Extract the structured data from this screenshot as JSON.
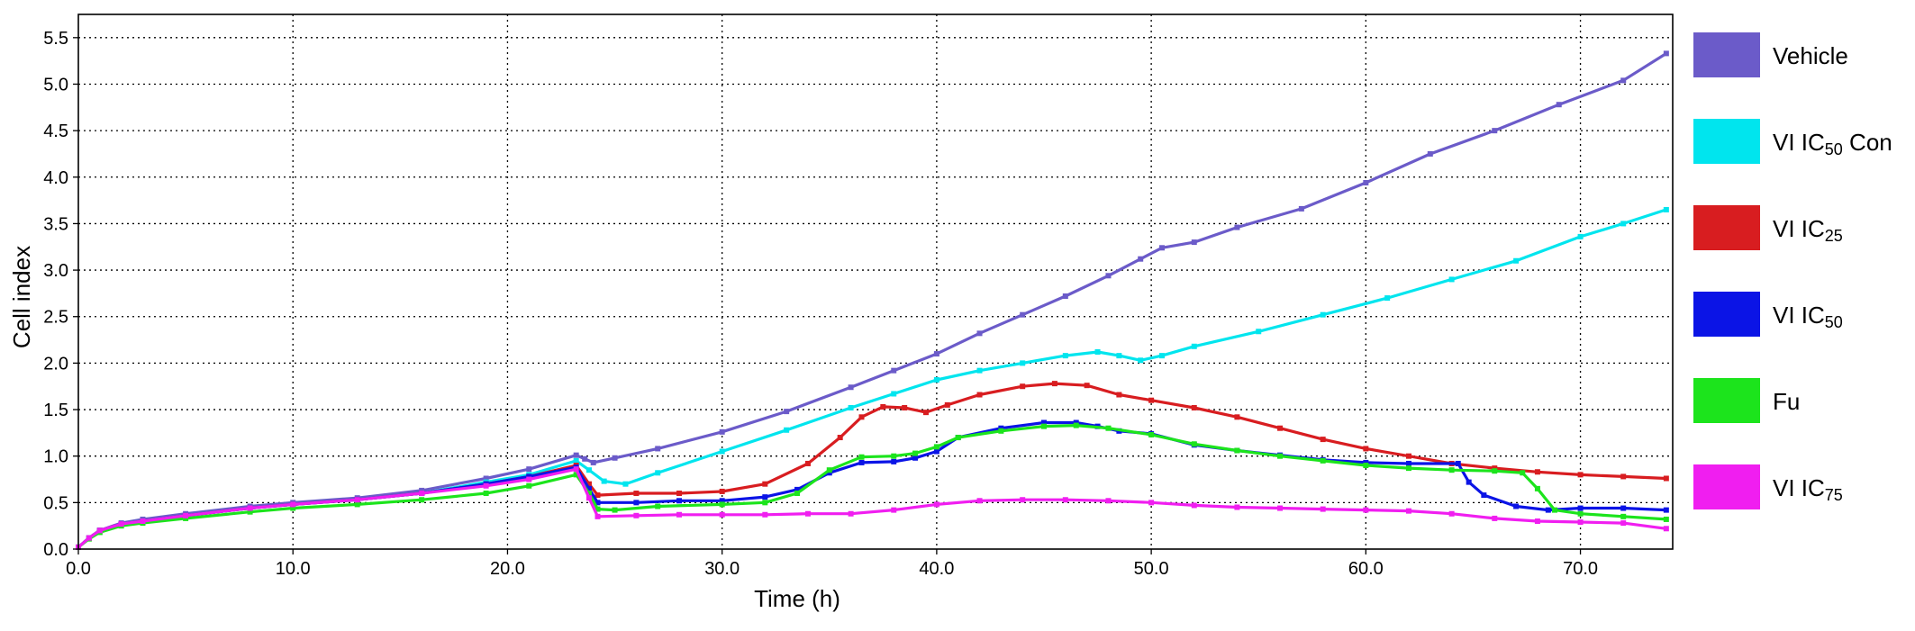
{
  "chart_data": {
    "type": "line",
    "title": "",
    "xlabel": "Time (h)",
    "ylabel": "Cell index",
    "xlim": [
      0,
      74.3
    ],
    "ylim": [
      0,
      5.75
    ],
    "x_ticks": [
      0,
      10,
      20,
      30,
      40,
      50,
      60,
      70
    ],
    "x_tick_labels": [
      "0.0",
      "10.0",
      "20.0",
      "30.0",
      "40.0",
      "50.0",
      "60.0",
      "70.0"
    ],
    "y_ticks": [
      0,
      0.5,
      1,
      1.5,
      2,
      2.5,
      3,
      3.5,
      4,
      4.5,
      5,
      5.5
    ],
    "y_tick_labels": [
      "0.0",
      "0.5",
      "1.0",
      "1.5",
      "2.0",
      "2.5",
      "3.0",
      "3.5",
      "4.0",
      "4.5",
      "5.0",
      "5.5"
    ],
    "grid": true,
    "legend_position": "right",
    "series": [
      {
        "name": "Vehicle",
        "label_parts": [
          {
            "text": "Vehicle",
            "sub": ""
          }
        ],
        "color": "#6b5bc9",
        "points": [
          [
            0,
            0.02
          ],
          [
            0.5,
            0.12
          ],
          [
            1,
            0.2
          ],
          [
            2,
            0.28
          ],
          [
            3,
            0.32
          ],
          [
            5,
            0.38
          ],
          [
            8,
            0.46
          ],
          [
            10,
            0.5
          ],
          [
            13,
            0.55
          ],
          [
            16,
            0.63
          ],
          [
            19,
            0.76
          ],
          [
            21,
            0.86
          ],
          [
            23.2,
            1.01
          ],
          [
            23.6,
            0.97
          ],
          [
            24,
            0.93
          ],
          [
            25,
            0.98
          ],
          [
            27,
            1.08
          ],
          [
            30,
            1.26
          ],
          [
            33,
            1.48
          ],
          [
            36,
            1.74
          ],
          [
            38,
            1.92
          ],
          [
            40,
            2.1
          ],
          [
            42,
            2.32
          ],
          [
            44,
            2.52
          ],
          [
            46,
            2.72
          ],
          [
            48,
            2.94
          ],
          [
            49.5,
            3.12
          ],
          [
            50.5,
            3.24
          ],
          [
            52,
            3.3
          ],
          [
            54,
            3.46
          ],
          [
            57,
            3.66
          ],
          [
            60,
            3.94
          ],
          [
            63,
            4.25
          ],
          [
            66,
            4.5
          ],
          [
            69,
            4.78
          ],
          [
            72,
            5.04
          ],
          [
            74,
            5.33
          ]
        ]
      },
      {
        "name": "VI IC50 Con",
        "label_parts": [
          {
            "text": "VI IC",
            "sub": ""
          },
          {
            "text": "50",
            "sub": "sub"
          },
          {
            "text": " Con",
            "sub": ""
          }
        ],
        "color": "#00e5ee",
        "points": [
          [
            0,
            0.02
          ],
          [
            0.5,
            0.12
          ],
          [
            1,
            0.2
          ],
          [
            2,
            0.27
          ],
          [
            3,
            0.3
          ],
          [
            5,
            0.36
          ],
          [
            8,
            0.44
          ],
          [
            10,
            0.48
          ],
          [
            13,
            0.53
          ],
          [
            16,
            0.6
          ],
          [
            19,
            0.72
          ],
          [
            21,
            0.8
          ],
          [
            23.2,
            0.95
          ],
          [
            23.8,
            0.85
          ],
          [
            24.5,
            0.73
          ],
          [
            25.5,
            0.7
          ],
          [
            27,
            0.82
          ],
          [
            30,
            1.05
          ],
          [
            33,
            1.28
          ],
          [
            36,
            1.52
          ],
          [
            38,
            1.67
          ],
          [
            40,
            1.82
          ],
          [
            42,
            1.92
          ],
          [
            44,
            2.0
          ],
          [
            46,
            2.08
          ],
          [
            47.5,
            2.12
          ],
          [
            48.5,
            2.08
          ],
          [
            49.5,
            2.03
          ],
          [
            50.5,
            2.08
          ],
          [
            52,
            2.18
          ],
          [
            55,
            2.34
          ],
          [
            58,
            2.52
          ],
          [
            61,
            2.7
          ],
          [
            64,
            2.9
          ],
          [
            67,
            3.1
          ],
          [
            70,
            3.36
          ],
          [
            72,
            3.5
          ],
          [
            74,
            3.65
          ]
        ]
      },
      {
        "name": "VI IC25",
        "label_parts": [
          {
            "text": "VI IC",
            "sub": ""
          },
          {
            "text": "25",
            "sub": "sub"
          }
        ],
        "color": "#d81d20",
        "points": [
          [
            0,
            0.02
          ],
          [
            0.5,
            0.12
          ],
          [
            1,
            0.2
          ],
          [
            2,
            0.27
          ],
          [
            3,
            0.3
          ],
          [
            5,
            0.36
          ],
          [
            8,
            0.44
          ],
          [
            10,
            0.48
          ],
          [
            13,
            0.53
          ],
          [
            16,
            0.6
          ],
          [
            19,
            0.7
          ],
          [
            21,
            0.78
          ],
          [
            23.2,
            0.9
          ],
          [
            23.8,
            0.7
          ],
          [
            24.2,
            0.58
          ],
          [
            26,
            0.6
          ],
          [
            28,
            0.6
          ],
          [
            30,
            0.62
          ],
          [
            32,
            0.7
          ],
          [
            34,
            0.92
          ],
          [
            35.5,
            1.2
          ],
          [
            36.5,
            1.42
          ],
          [
            37.5,
            1.53
          ],
          [
            38.5,
            1.52
          ],
          [
            39.5,
            1.47
          ],
          [
            40.5,
            1.55
          ],
          [
            42,
            1.66
          ],
          [
            44,
            1.75
          ],
          [
            45.5,
            1.78
          ],
          [
            47,
            1.76
          ],
          [
            48.5,
            1.66
          ],
          [
            50,
            1.6
          ],
          [
            52,
            1.52
          ],
          [
            54,
            1.42
          ],
          [
            56,
            1.3
          ],
          [
            58,
            1.18
          ],
          [
            60,
            1.08
          ],
          [
            62,
            1.0
          ],
          [
            64,
            0.92
          ],
          [
            66,
            0.87
          ],
          [
            68,
            0.83
          ],
          [
            70,
            0.8
          ],
          [
            72,
            0.78
          ],
          [
            74,
            0.76
          ]
        ]
      },
      {
        "name": "VI IC50",
        "label_parts": [
          {
            "text": "VI IC",
            "sub": ""
          },
          {
            "text": "50",
            "sub": "sub"
          }
        ],
        "color": "#0b14e6",
        "points": [
          [
            0,
            0.02
          ],
          [
            0.5,
            0.12
          ],
          [
            1,
            0.2
          ],
          [
            2,
            0.27
          ],
          [
            3,
            0.3
          ],
          [
            5,
            0.36
          ],
          [
            8,
            0.44
          ],
          [
            10,
            0.48
          ],
          [
            13,
            0.53
          ],
          [
            16,
            0.6
          ],
          [
            19,
            0.7
          ],
          [
            21,
            0.78
          ],
          [
            23.2,
            0.88
          ],
          [
            23.8,
            0.65
          ],
          [
            24.2,
            0.5
          ],
          [
            26,
            0.5
          ],
          [
            28,
            0.52
          ],
          [
            30,
            0.52
          ],
          [
            32,
            0.56
          ],
          [
            33.5,
            0.64
          ],
          [
            35,
            0.82
          ],
          [
            36.5,
            0.93
          ],
          [
            38,
            0.94
          ],
          [
            39,
            0.98
          ],
          [
            40,
            1.05
          ],
          [
            41,
            1.2
          ],
          [
            43,
            1.3
          ],
          [
            45,
            1.36
          ],
          [
            46.5,
            1.36
          ],
          [
            47.5,
            1.32
          ],
          [
            48.5,
            1.27
          ],
          [
            50,
            1.24
          ],
          [
            52,
            1.12
          ],
          [
            54,
            1.06
          ],
          [
            56,
            1.01
          ],
          [
            58,
            0.96
          ],
          [
            60,
            0.93
          ],
          [
            62,
            0.92
          ],
          [
            64.3,
            0.92
          ],
          [
            64.8,
            0.72
          ],
          [
            65.5,
            0.58
          ],
          [
            67,
            0.46
          ],
          [
            68.5,
            0.42
          ],
          [
            70,
            0.44
          ],
          [
            72,
            0.44
          ],
          [
            74,
            0.42
          ]
        ]
      },
      {
        "name": "Fu",
        "label_parts": [
          {
            "text": "Fu",
            "sub": ""
          }
        ],
        "color": "#1ce41c",
        "points": [
          [
            0,
            0.02
          ],
          [
            0.5,
            0.11
          ],
          [
            1,
            0.18
          ],
          [
            2,
            0.25
          ],
          [
            3,
            0.28
          ],
          [
            5,
            0.33
          ],
          [
            8,
            0.4
          ],
          [
            10,
            0.44
          ],
          [
            13,
            0.48
          ],
          [
            16,
            0.53
          ],
          [
            19,
            0.6
          ],
          [
            21,
            0.68
          ],
          [
            23.2,
            0.8
          ],
          [
            23.8,
            0.6
          ],
          [
            24.2,
            0.43
          ],
          [
            25,
            0.42
          ],
          [
            27,
            0.46
          ],
          [
            30,
            0.48
          ],
          [
            32,
            0.5
          ],
          [
            33.5,
            0.6
          ],
          [
            35,
            0.85
          ],
          [
            36.5,
            0.99
          ],
          [
            38,
            1.0
          ],
          [
            39,
            1.03
          ],
          [
            40,
            1.1
          ],
          [
            41,
            1.2
          ],
          [
            43,
            1.27
          ],
          [
            45,
            1.32
          ],
          [
            46.5,
            1.33
          ],
          [
            48,
            1.3
          ],
          [
            50,
            1.23
          ],
          [
            52,
            1.13
          ],
          [
            54,
            1.06
          ],
          [
            56,
            1.0
          ],
          [
            58,
            0.95
          ],
          [
            60,
            0.9
          ],
          [
            62,
            0.87
          ],
          [
            64,
            0.85
          ],
          [
            66,
            0.84
          ],
          [
            67.3,
            0.82
          ],
          [
            68,
            0.65
          ],
          [
            68.8,
            0.42
          ],
          [
            70,
            0.38
          ],
          [
            72,
            0.35
          ],
          [
            74,
            0.32
          ]
        ]
      },
      {
        "name": "VI IC75",
        "label_parts": [
          {
            "text": "VI IC",
            "sub": ""
          },
          {
            "text": "75",
            "sub": "sub"
          }
        ],
        "color": "#f01ef0",
        "points": [
          [
            0,
            0.02
          ],
          [
            0.5,
            0.12
          ],
          [
            1,
            0.2
          ],
          [
            2,
            0.27
          ],
          [
            3,
            0.3
          ],
          [
            5,
            0.36
          ],
          [
            8,
            0.44
          ],
          [
            10,
            0.48
          ],
          [
            13,
            0.53
          ],
          [
            16,
            0.6
          ],
          [
            19,
            0.68
          ],
          [
            21,
            0.75
          ],
          [
            23.2,
            0.86
          ],
          [
            23.8,
            0.55
          ],
          [
            24.2,
            0.35
          ],
          [
            26,
            0.36
          ],
          [
            28,
            0.37
          ],
          [
            30,
            0.37
          ],
          [
            32,
            0.37
          ],
          [
            34,
            0.38
          ],
          [
            36,
            0.38
          ],
          [
            38,
            0.42
          ],
          [
            40,
            0.48
          ],
          [
            42,
            0.52
          ],
          [
            44,
            0.53
          ],
          [
            46,
            0.53
          ],
          [
            48,
            0.52
          ],
          [
            50,
            0.5
          ],
          [
            52,
            0.47
          ],
          [
            54,
            0.45
          ],
          [
            56,
            0.44
          ],
          [
            58,
            0.43
          ],
          [
            60,
            0.42
          ],
          [
            62,
            0.41
          ],
          [
            64,
            0.38
          ],
          [
            66,
            0.33
          ],
          [
            68,
            0.3
          ],
          [
            70,
            0.29
          ],
          [
            72,
            0.28
          ],
          [
            74,
            0.22
          ]
        ]
      }
    ]
  }
}
